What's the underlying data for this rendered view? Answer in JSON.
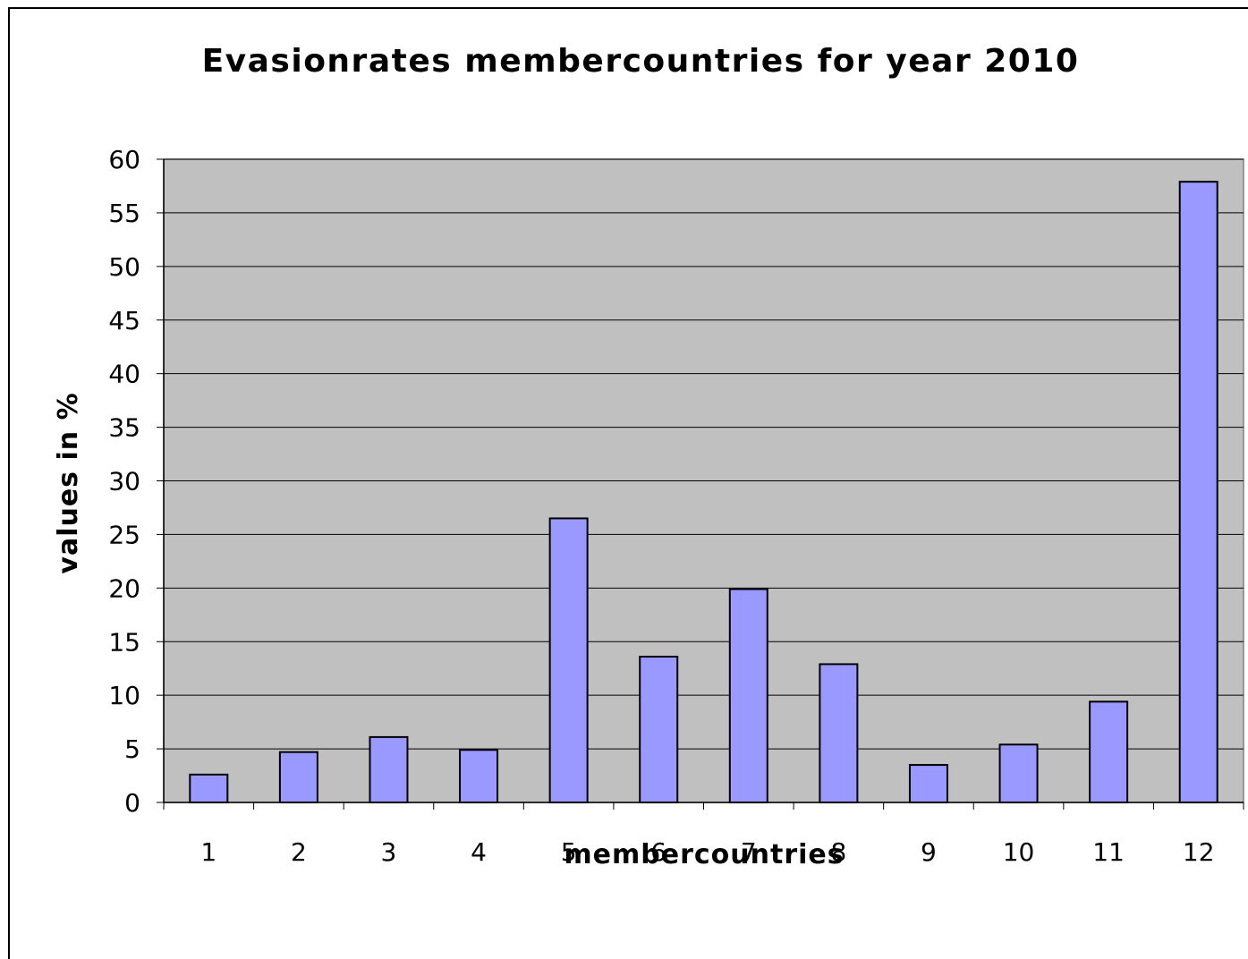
{
  "chart_data": {
    "type": "bar",
    "title": "Evasionrates membercountries for year 2010",
    "xlabel": "membercountries",
    "ylabel": "values in %",
    "categories": [
      "1",
      "2",
      "3",
      "4",
      "5",
      "6",
      "7",
      "8",
      "9",
      "10",
      "11",
      "12"
    ],
    "values": [
      2.6,
      4.7,
      6.1,
      4.9,
      26.5,
      13.6,
      19.9,
      12.9,
      3.5,
      5.4,
      9.4,
      57.9
    ],
    "ylim": [
      0,
      60
    ],
    "yticks": [
      0,
      5,
      10,
      15,
      20,
      25,
      30,
      35,
      40,
      45,
      50,
      55,
      60
    ],
    "grid": true,
    "legend": "none",
    "colors": {
      "plot_background": "#c0c0c0",
      "bar_fill": "#9999ff",
      "bar_stroke": "#000000",
      "gridline": "#000000"
    }
  }
}
